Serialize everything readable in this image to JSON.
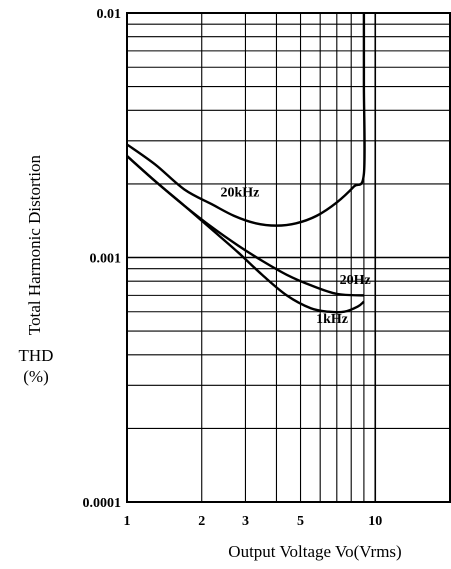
{
  "chart_data": {
    "type": "line",
    "xlabel": "Output Voltage   Vo(Vrms)",
    "ylabel": "Total Harmonic Distortion",
    "ylabel_unit_line1": "THD",
    "ylabel_unit_line2": "(%)",
    "x_scale": "log",
    "y_scale": "log",
    "xlim": [
      1,
      20
    ],
    "ylim": [
      0.0001,
      0.01
    ],
    "x_ticks": [
      1,
      2,
      3,
      5,
      10
    ],
    "x_tick_labels": [
      "1",
      "2",
      "3",
      "5",
      "10"
    ],
    "y_ticks": [
      0.0001,
      0.001,
      0.01
    ],
    "y_tick_labels": [
      "0.0001",
      "0.001",
      "0.01"
    ],
    "grid": true,
    "series": [
      {
        "name": "20kHz",
        "x": [
          1,
          1.3,
          1.7,
          2.2,
          2.7,
          3.3,
          4,
          4.8,
          5.8,
          7,
          8.2,
          9,
          9,
          9
        ],
        "y": [
          0.0029,
          0.0024,
          0.0019,
          0.00165,
          0.00148,
          0.00138,
          0.00135,
          0.00138,
          0.00148,
          0.00168,
          0.00195,
          0.0022,
          0.005,
          0.01
        ]
      },
      {
        "name": "20Hz",
        "x": [
          1,
          1.3,
          1.7,
          2.2,
          2.8,
          3.5,
          4.4,
          5.5,
          7,
          9
        ],
        "y": [
          0.0026,
          0.00205,
          0.00163,
          0.00133,
          0.00112,
          0.00097,
          0.00085,
          0.00077,
          0.00071,
          0.0007
        ]
      },
      {
        "name": "1kHz",
        "x": [
          1,
          1.3,
          1.7,
          2.2,
          2.8,
          3.5,
          4.4,
          5.5,
          6.5,
          7.5,
          8.5,
          9
        ],
        "y": [
          0.0026,
          0.00205,
          0.00163,
          0.0013,
          0.00105,
          0.00085,
          0.0007,
          0.00062,
          0.0006,
          0.0006,
          0.00063,
          0.00066
        ]
      }
    ]
  }
}
